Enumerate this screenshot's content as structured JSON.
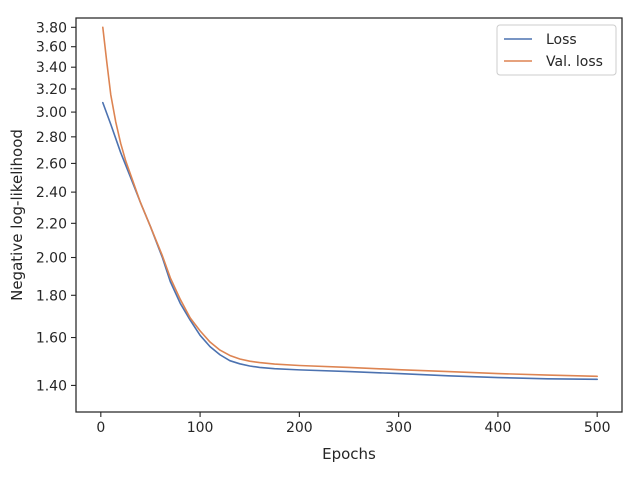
{
  "chart_data": {
    "type": "line",
    "title": "",
    "xlabel": "Epochs",
    "ylabel": "Negative log-likelihood",
    "y_scale": "log",
    "xlim": [
      -25,
      525
    ],
    "ylim": [
      1.3,
      3.9
    ],
    "x_ticks": [
      0,
      100,
      200,
      300,
      400,
      500
    ],
    "x_tick_labels": [
      "0",
      "100",
      "200",
      "300",
      "400",
      "500"
    ],
    "y_ticks": [
      1.4,
      1.6,
      1.8,
      2.0,
      2.2,
      2.4,
      2.6,
      2.8,
      3.0,
      3.2,
      3.4,
      3.6,
      3.8
    ],
    "y_tick_labels": [
      "1.40",
      "1.60",
      "1.80",
      "2.00",
      "2.20",
      "2.40",
      "2.60",
      "2.80",
      "3.00",
      "3.20",
      "3.40",
      "3.60",
      "3.80"
    ],
    "grid": false,
    "legend_position": "top-right",
    "colors": {
      "loss": "#4c72b0",
      "val_loss": "#dd8452"
    },
    "series": [
      {
        "name": "Loss",
        "x": [
          2,
          10,
          20,
          30,
          40,
          50,
          62,
          70,
          80,
          90,
          100,
          110,
          120,
          130,
          140,
          150,
          160,
          175,
          200,
          250,
          300,
          350,
          400,
          450,
          500
        ],
        "y": [
          3.08,
          2.9,
          2.68,
          2.5,
          2.33,
          2.18,
          2.0,
          1.87,
          1.76,
          1.68,
          1.61,
          1.56,
          1.525,
          1.5,
          1.487,
          1.478,
          1.472,
          1.467,
          1.462,
          1.455,
          1.447,
          1.438,
          1.431,
          1.426,
          1.424
        ]
      },
      {
        "name": "Val. loss",
        "x": [
          2,
          6,
          10,
          15,
          20,
          25,
          30,
          40,
          50,
          62,
          70,
          80,
          90,
          100,
          110,
          120,
          130,
          140,
          150,
          160,
          175,
          200,
          250,
          300,
          350,
          400,
          450,
          500
        ],
        "y": [
          3.8,
          3.45,
          3.15,
          2.92,
          2.75,
          2.62,
          2.52,
          2.33,
          2.18,
          2.01,
          1.89,
          1.78,
          1.69,
          1.63,
          1.58,
          1.545,
          1.522,
          1.507,
          1.498,
          1.492,
          1.486,
          1.48,
          1.472,
          1.463,
          1.455,
          1.447,
          1.441,
          1.436
        ]
      }
    ]
  }
}
